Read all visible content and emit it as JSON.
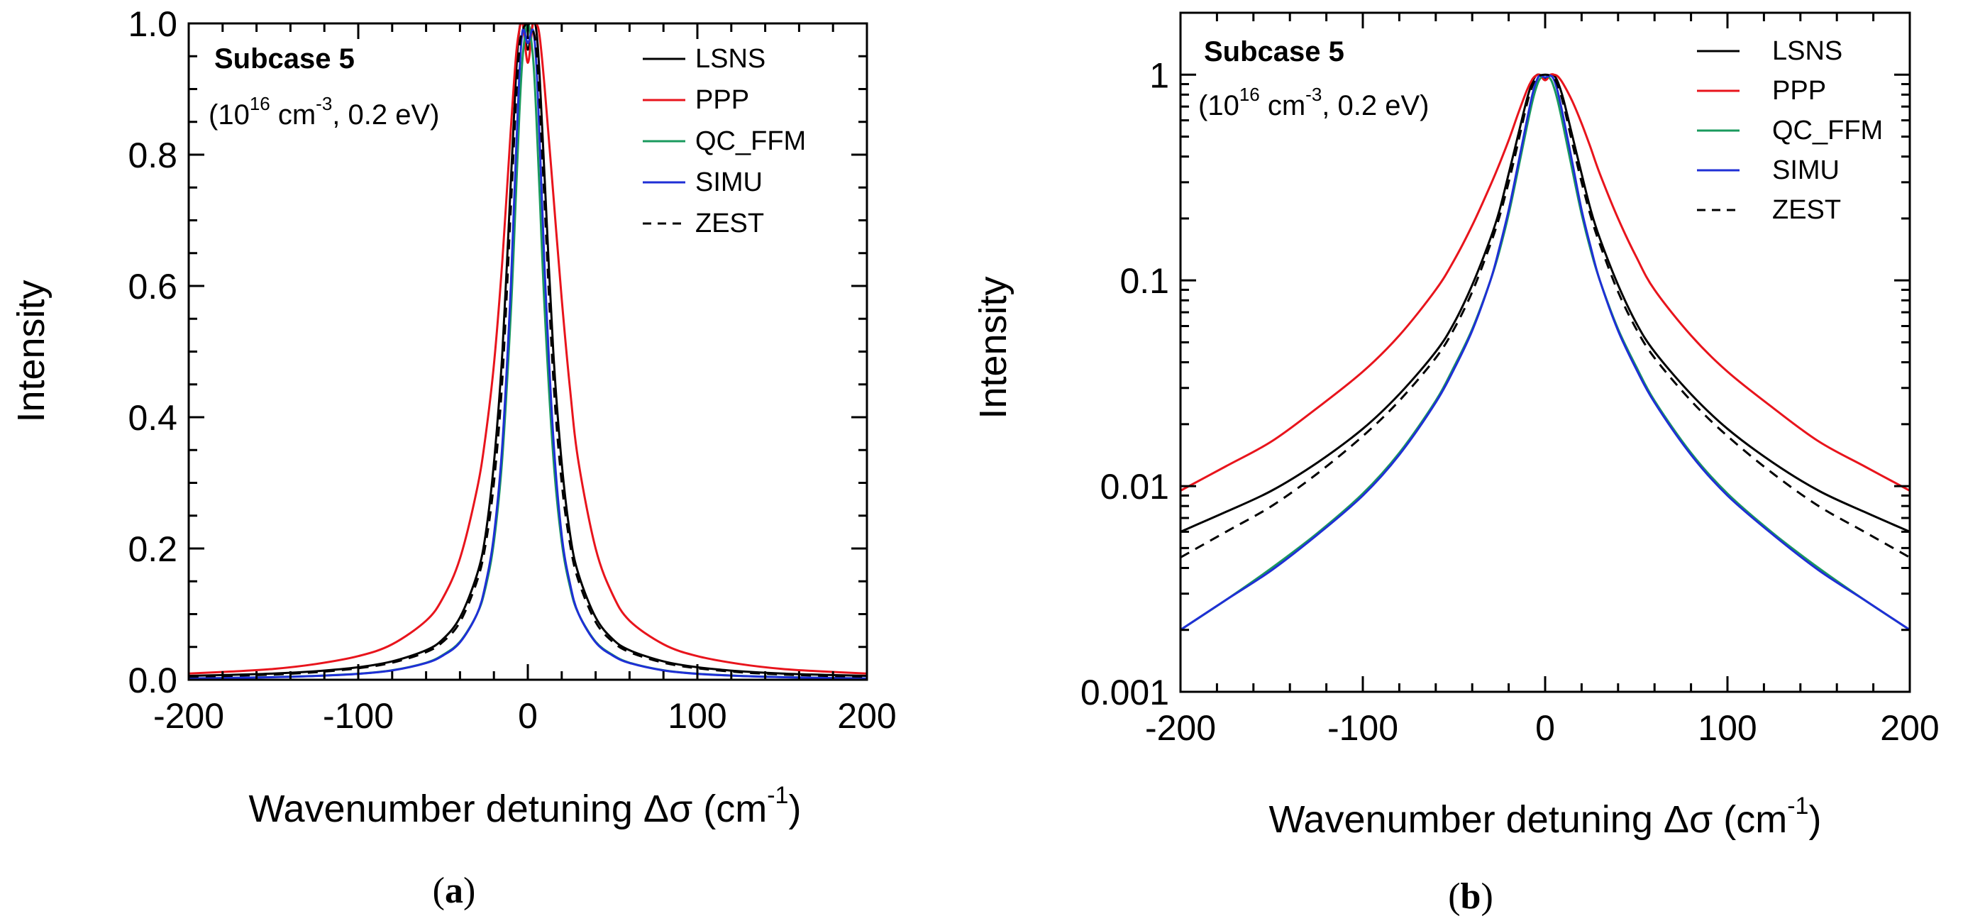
{
  "chart_data": [
    {
      "type": "line",
      "panel_label": "(a)",
      "annotation": {
        "title": "Subcase 5",
        "subtitle_parts": [
          "(10",
          "16",
          " cm",
          "-3",
          ", 0.2 eV)"
        ]
      },
      "xlabel_parts": [
        "Wavenumber detuning Δσ (cm",
        "-1",
        ")"
      ],
      "ylabel": "Intensity",
      "xlim": [
        -200,
        200
      ],
      "ylim": [
        0,
        1
      ],
      "yscale": "linear",
      "xticks": [
        -200,
        -100,
        0,
        100,
        200
      ],
      "yticks": [
        0.0,
        0.2,
        0.4,
        0.6,
        0.8,
        1.0
      ],
      "ytick_labels": [
        "0.0",
        "0.2",
        "0.4",
        "0.6",
        "0.8",
        "1.0"
      ],
      "legend_position": "top-right",
      "x": [
        -200,
        -175,
        -150,
        -125,
        -100,
        -80,
        -60,
        -50,
        -40,
        -30,
        -25,
        -20,
        -15,
        -10,
        -7,
        -5,
        -3,
        0,
        3,
        5,
        7,
        10,
        15,
        20,
        25,
        30,
        40,
        50,
        60,
        80,
        100,
        125,
        150,
        175,
        200
      ],
      "series": [
        {
          "name": "LSNS",
          "color": "#000000",
          "dash": "",
          "values": [
            0.006,
            0.0075,
            0.0095,
            0.013,
            0.019,
            0.028,
            0.045,
            0.062,
            0.095,
            0.16,
            0.22,
            0.33,
            0.5,
            0.76,
            0.92,
            0.99,
            1.0,
            0.96,
            1.0,
            0.99,
            0.92,
            0.76,
            0.5,
            0.33,
            0.22,
            0.16,
            0.095,
            0.062,
            0.045,
            0.028,
            0.019,
            0.013,
            0.0095,
            0.0075,
            0.006
          ]
        },
        {
          "name": "PPP",
          "color": "#e8141c",
          "dash": "",
          "values": [
            0.0095,
            0.0125,
            0.0165,
            0.024,
            0.036,
            0.054,
            0.09,
            0.125,
            0.185,
            0.29,
            0.37,
            0.48,
            0.64,
            0.84,
            0.95,
            0.99,
            1.0,
            0.94,
            1.0,
            1.0,
            0.98,
            0.9,
            0.74,
            0.58,
            0.44,
            0.33,
            0.2,
            0.13,
            0.09,
            0.054,
            0.036,
            0.024,
            0.0165,
            0.0125,
            0.0095
          ]
        },
        {
          "name": "QC_FFM",
          "color": "#1a9a5e",
          "dash": "",
          "values": [
            0.002,
            0.0028,
            0.004,
            0.0059,
            0.0092,
            0.0145,
            0.026,
            0.038,
            0.058,
            0.1,
            0.14,
            0.21,
            0.34,
            0.56,
            0.74,
            0.86,
            0.95,
            1.0,
            0.95,
            0.86,
            0.74,
            0.56,
            0.34,
            0.21,
            0.14,
            0.1,
            0.058,
            0.038,
            0.026,
            0.0145,
            0.0092,
            0.0059,
            0.004,
            0.0028,
            0.002
          ]
        },
        {
          "name": "SIMU",
          "color": "#1f2fd6",
          "dash": "",
          "values": [
            0.002,
            0.0028,
            0.0039,
            0.0058,
            0.009,
            0.0142,
            0.0255,
            0.037,
            0.057,
            0.1,
            0.145,
            0.22,
            0.36,
            0.6,
            0.8,
            0.92,
            0.99,
            0.97,
            0.99,
            0.94,
            0.82,
            0.62,
            0.37,
            0.22,
            0.145,
            0.1,
            0.057,
            0.037,
            0.0255,
            0.0142,
            0.009,
            0.0058,
            0.0039,
            0.0028,
            0.002
          ]
        },
        {
          "name": "ZEST",
          "color": "#000000",
          "dash": "14,10",
          "values": [
            0.0045,
            0.006,
            0.008,
            0.0115,
            0.0175,
            0.026,
            0.042,
            0.058,
            0.088,
            0.15,
            0.205,
            0.3,
            0.46,
            0.72,
            0.88,
            0.96,
            0.99,
            1.0,
            0.99,
            0.96,
            0.88,
            0.72,
            0.46,
            0.3,
            0.205,
            0.15,
            0.088,
            0.058,
            0.042,
            0.026,
            0.0175,
            0.0115,
            0.008,
            0.006,
            0.0045
          ]
        }
      ]
    },
    {
      "type": "line",
      "panel_label": "(b)",
      "annotation": {
        "title": "Subcase 5",
        "subtitle_parts": [
          "(10",
          "16",
          " cm",
          "-3",
          ", 0.2 eV)"
        ]
      },
      "xlabel_parts": [
        "Wavenumber detuning Δσ (cm",
        "-1",
        ")"
      ],
      "ylabel": "Intensity",
      "xlim": [
        -200,
        200
      ],
      "ylim": [
        0.001,
        2
      ],
      "yscale": "log",
      "xticks": [
        -200,
        -100,
        0,
        100,
        200
      ],
      "yticks": [
        0.001,
        0.01,
        0.1,
        1
      ],
      "ytick_labels": [
        "0.001",
        "0.01",
        "0.1",
        "1"
      ],
      "legend_position": "top-right",
      "x": [
        -200,
        -175,
        -150,
        -125,
        -100,
        -80,
        -60,
        -50,
        -40,
        -30,
        -25,
        -20,
        -15,
        -10,
        -7,
        -5,
        -3,
        0,
        3,
        5,
        7,
        10,
        15,
        20,
        25,
        30,
        40,
        50,
        60,
        80,
        100,
        125,
        150,
        175,
        200
      ],
      "series": [
        {
          "name": "LSNS",
          "color": "#000000",
          "dash": "",
          "values": [
            0.006,
            0.0075,
            0.0095,
            0.013,
            0.019,
            0.028,
            0.045,
            0.062,
            0.095,
            0.16,
            0.22,
            0.33,
            0.5,
            0.76,
            0.92,
            0.99,
            1.0,
            0.96,
            1.0,
            0.99,
            0.92,
            0.76,
            0.5,
            0.33,
            0.22,
            0.16,
            0.095,
            0.062,
            0.045,
            0.028,
            0.019,
            0.013,
            0.0095,
            0.0075,
            0.006
          ]
        },
        {
          "name": "PPP",
          "color": "#e8141c",
          "dash": "",
          "values": [
            0.0095,
            0.0125,
            0.0165,
            0.024,
            0.036,
            0.054,
            0.09,
            0.125,
            0.185,
            0.29,
            0.37,
            0.48,
            0.64,
            0.84,
            0.95,
            0.99,
            1.0,
            0.94,
            1.0,
            1.0,
            0.98,
            0.9,
            0.74,
            0.58,
            0.44,
            0.33,
            0.2,
            0.13,
            0.09,
            0.054,
            0.036,
            0.024,
            0.0165,
            0.0125,
            0.0095
          ]
        },
        {
          "name": "QC_FFM",
          "color": "#1a9a5e",
          "dash": "",
          "values": [
            0.002,
            0.0028,
            0.004,
            0.0059,
            0.0092,
            0.0145,
            0.026,
            0.038,
            0.058,
            0.1,
            0.14,
            0.21,
            0.34,
            0.56,
            0.74,
            0.86,
            0.95,
            1.0,
            0.95,
            0.86,
            0.74,
            0.56,
            0.34,
            0.21,
            0.14,
            0.1,
            0.058,
            0.038,
            0.026,
            0.0145,
            0.0092,
            0.0059,
            0.004,
            0.0028,
            0.002
          ]
        },
        {
          "name": "SIMU",
          "color": "#1f2fd6",
          "dash": "",
          "values": [
            0.002,
            0.0028,
            0.0039,
            0.0058,
            0.009,
            0.0142,
            0.0255,
            0.037,
            0.057,
            0.1,
            0.145,
            0.22,
            0.36,
            0.6,
            0.8,
            0.92,
            0.99,
            0.97,
            0.99,
            0.94,
            0.82,
            0.62,
            0.37,
            0.22,
            0.145,
            0.1,
            0.057,
            0.037,
            0.0255,
            0.0142,
            0.009,
            0.0058,
            0.0039,
            0.0028,
            0.002
          ]
        },
        {
          "name": "ZEST",
          "color": "#000000",
          "dash": "14,10",
          "values": [
            0.0045,
            0.006,
            0.008,
            0.0115,
            0.0175,
            0.026,
            0.042,
            0.058,
            0.088,
            0.15,
            0.205,
            0.3,
            0.46,
            0.72,
            0.88,
            0.96,
            0.99,
            1.0,
            0.99,
            0.96,
            0.88,
            0.72,
            0.46,
            0.3,
            0.205,
            0.15,
            0.088,
            0.058,
            0.042,
            0.026,
            0.0175,
            0.0115,
            0.008,
            0.006,
            0.0045
          ]
        }
      ]
    }
  ]
}
